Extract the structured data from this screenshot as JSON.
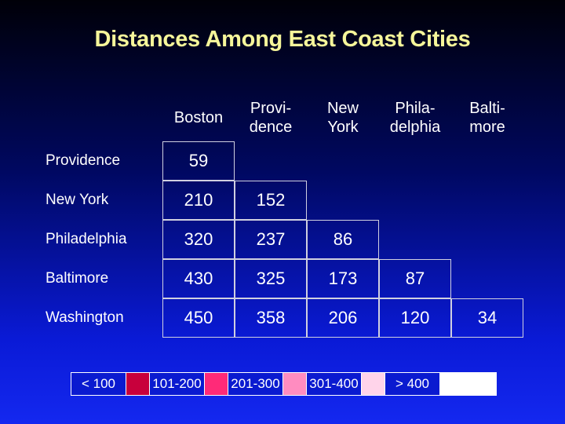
{
  "title": "Distances Among East Coast Cities",
  "columns": [
    {
      "line1": "Boston",
      "line2": ""
    },
    {
      "line1": "Provi-",
      "line2": "dence"
    },
    {
      "line1": "New",
      "line2": "York"
    },
    {
      "line1": "Phila-",
      "line2": "delphia"
    },
    {
      "line1": "Balti-",
      "line2": "more"
    }
  ],
  "rows": [
    {
      "label": "Providence",
      "values": [
        "59"
      ]
    },
    {
      "label": "New York",
      "values": [
        "210",
        "152"
      ]
    },
    {
      "label": "Philadelphia",
      "values": [
        "320",
        "237",
        "86"
      ]
    },
    {
      "label": "Baltimore",
      "values": [
        "430",
        "325",
        "173",
        "87"
      ]
    },
    {
      "label": "Washington",
      "values": [
        "450",
        "358",
        "206",
        "120",
        "34"
      ]
    }
  ],
  "legend": [
    {
      "label": "< 100",
      "color": "#c8003c"
    },
    {
      "label": "101-200",
      "color": "#ff2a78"
    },
    {
      "label": "201-300",
      "color": "#ff8cc0"
    },
    {
      "label": "301-400",
      "color": "#ffd4ea"
    },
    {
      "label": "> 400",
      "color": "#ffffff"
    }
  ]
}
